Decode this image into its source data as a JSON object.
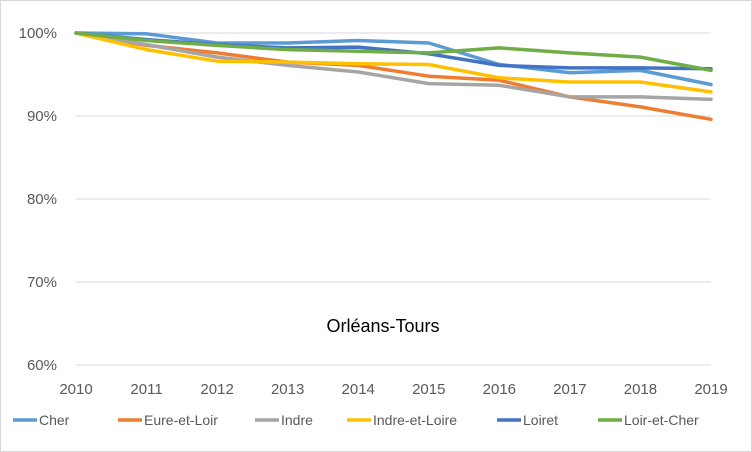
{
  "chart_data": {
    "type": "line",
    "title": "",
    "xlabel": "",
    "ylabel": "",
    "annotation": "Orléans-Tours",
    "x": [
      2010,
      2011,
      2012,
      2013,
      2014,
      2015,
      2016,
      2017,
      2018,
      2019
    ],
    "x_tick_labels": [
      "2010",
      "2011",
      "2012",
      "2013",
      "2014",
      "2015",
      "2016",
      "2017",
      "2018",
      "2019"
    ],
    "ylim": [
      0.6,
      1.0
    ],
    "y_ticks": [
      0.6,
      0.7,
      0.8,
      0.9,
      1.0
    ],
    "y_tick_labels": [
      "60%",
      "70%",
      "80%",
      "90%",
      "100%"
    ],
    "grid": "horizontal",
    "legend_position": "bottom",
    "series": [
      {
        "name": "Cher",
        "color": "#5B9BD5",
        "values": [
          1.0,
          0.999,
          0.988,
          0.988,
          0.991,
          0.988,
          0.962,
          0.952,
          0.955,
          0.938
        ]
      },
      {
        "name": "Eure-et-Loir",
        "color": "#ED7D31",
        "values": [
          1.0,
          0.985,
          0.976,
          0.965,
          0.961,
          0.948,
          0.943,
          0.923,
          0.911,
          0.896
        ]
      },
      {
        "name": "Indre",
        "color": "#A5A5A5",
        "values": [
          1.0,
          0.986,
          0.971,
          0.961,
          0.953,
          0.939,
          0.937,
          0.923,
          0.923,
          0.92
        ]
      },
      {
        "name": "Indre-et-Loire",
        "color": "#FFC000",
        "values": [
          1.0,
          0.98,
          0.966,
          0.965,
          0.963,
          0.962,
          0.946,
          0.941,
          0.941,
          0.929
        ]
      },
      {
        "name": "Loiret",
        "color": "#4472C4",
        "values": [
          1.0,
          0.992,
          0.986,
          0.982,
          0.983,
          0.975,
          0.961,
          0.958,
          0.958,
          0.957
        ]
      },
      {
        "name": "Loir-et-Cher",
        "color": "#70AD47",
        "values": [
          1.0,
          0.991,
          0.985,
          0.98,
          0.978,
          0.976,
          0.982,
          0.976,
          0.971,
          0.955
        ]
      }
    ]
  }
}
